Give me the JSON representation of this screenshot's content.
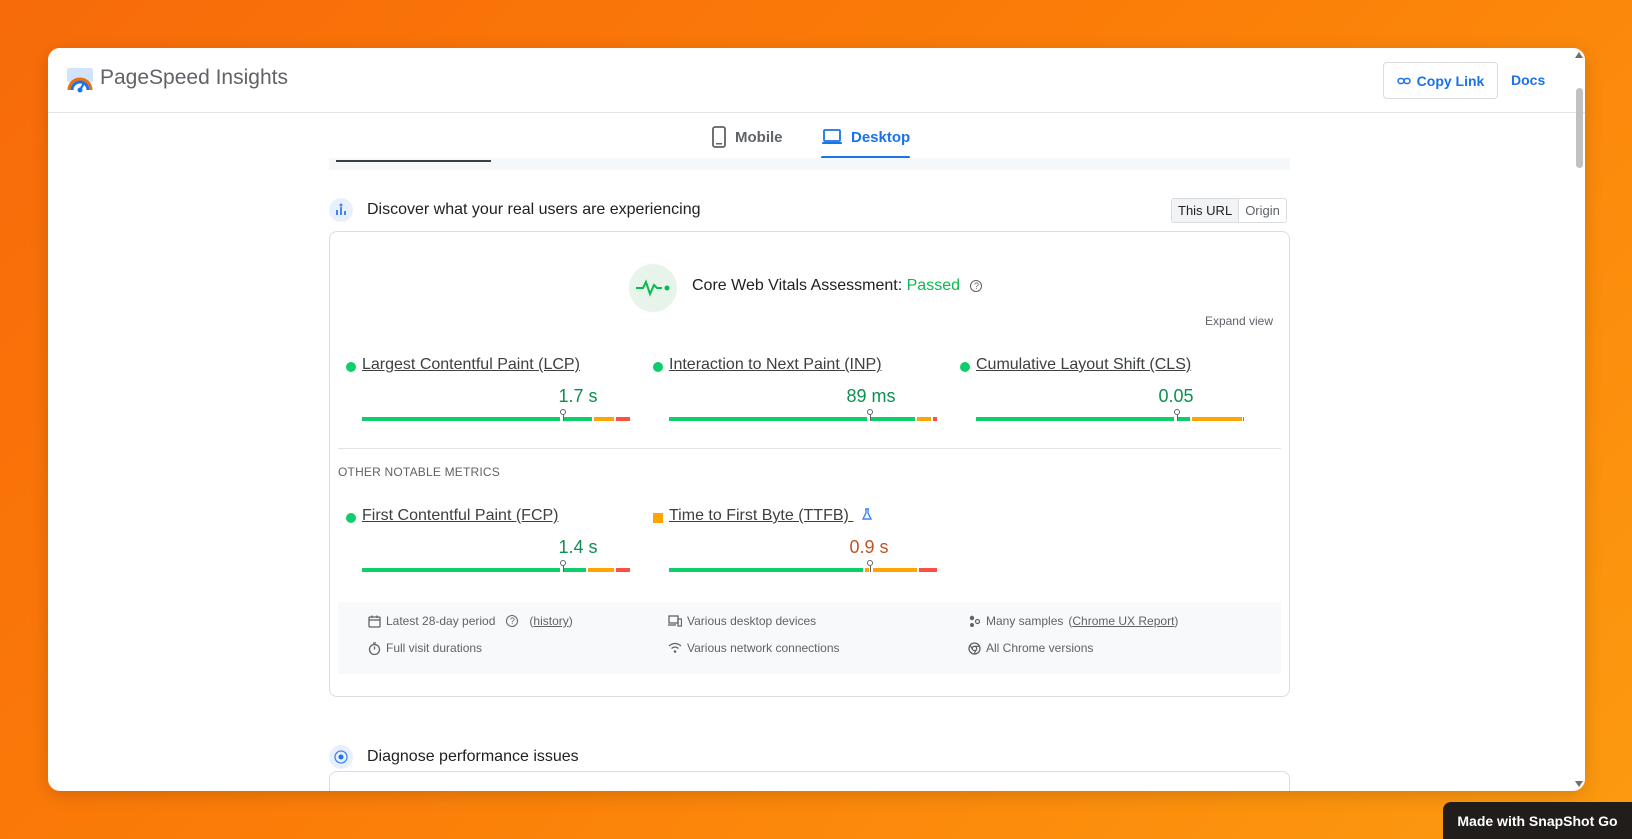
{
  "app": {
    "title": "PageSpeed Insights",
    "copy_link": "Copy Link",
    "docs": "Docs"
  },
  "tabs": [
    {
      "label": "Mobile",
      "active": false
    },
    {
      "label": "Desktop",
      "active": true
    }
  ],
  "field": {
    "title": "Discover what your real users are experiencing",
    "toggle": {
      "this_url": "This URL",
      "origin": "Origin",
      "selected": "This URL"
    },
    "assessment": {
      "label": "Core Web Vitals Assessment:",
      "status": "Passed"
    },
    "expand": "Expand view",
    "core_metrics": [
      {
        "name": "Largest Contentful Paint (LCP)",
        "value": "1.7 s",
        "rating": "good"
      },
      {
        "name": "Interaction to Next Paint (INP)",
        "value": "89 ms",
        "rating": "good"
      },
      {
        "name": "Cumulative Layout Shift (CLS)",
        "value": "0.05",
        "rating": "good"
      }
    ],
    "other_label": "OTHER NOTABLE METRICS",
    "other_metrics": [
      {
        "name": "First Contentful Paint (FCP)",
        "value": "1.4 s",
        "rating": "good"
      },
      {
        "name": "Time to First Byte (TTFB)",
        "value": "0.9 s",
        "rating": "needs-improvement"
      }
    ],
    "info": {
      "period": "Latest 28-day period",
      "history_link": "history",
      "devices": "Various desktop devices",
      "samples_prefix": "Many samples",
      "samples_link": "Chrome UX Report",
      "durations": "Full visit durations",
      "network": "Various network connections",
      "chrome": "All Chrome versions"
    }
  },
  "diagnose": {
    "title": "Diagnose performance issues"
  },
  "badge": "Made with SnapShot Go",
  "colors": {
    "good": "#0cce6b",
    "average": "#ffa400",
    "poor": "#ff4e42",
    "accent": "#1a73e8"
  }
}
